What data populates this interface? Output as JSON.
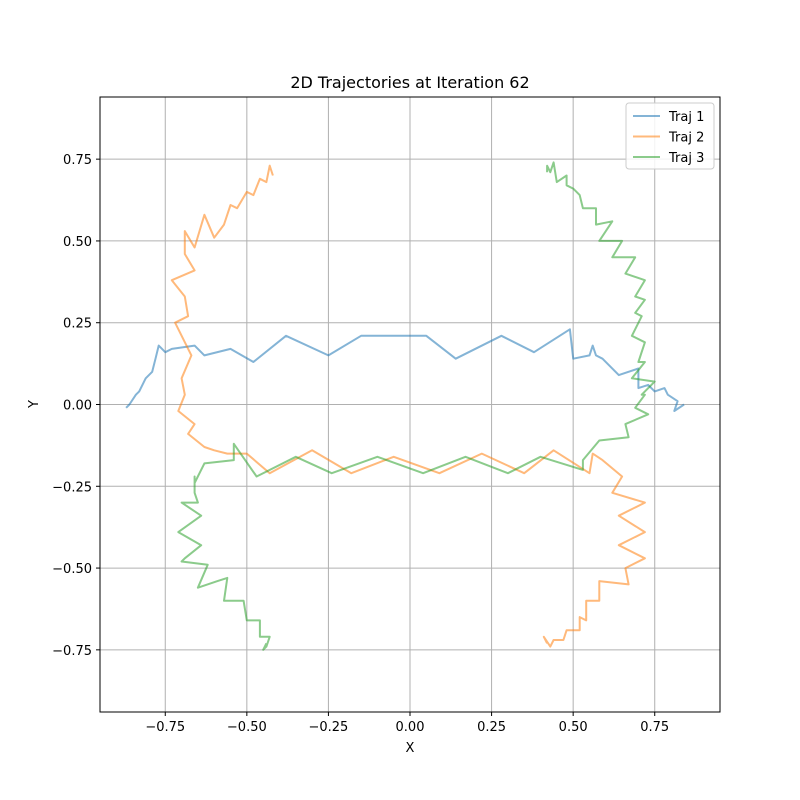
{
  "chart_data": {
    "type": "line",
    "title": "2D Trajectories at Iteration 62",
    "xlabel": "X",
    "ylabel": "Y",
    "xlim": [
      -0.95,
      0.95
    ],
    "ylim": [
      -0.94,
      0.94
    ],
    "xticks": [
      -0.75,
      -0.5,
      -0.25,
      0.0,
      0.25,
      0.5,
      0.75
    ],
    "xtick_labels": [
      "−0.75",
      "−0.50",
      "−0.25",
      "0.00",
      "0.25",
      "0.50",
      "0.75"
    ],
    "yticks": [
      -0.75,
      -0.5,
      -0.25,
      0.0,
      0.25,
      0.5,
      0.75
    ],
    "ytick_labels": [
      "−0.75",
      "−0.50",
      "−0.25",
      "0.00",
      "0.25",
      "0.50",
      "0.75"
    ],
    "grid": true,
    "legend_position": "top-right",
    "series": [
      {
        "name": "Traj 1",
        "color": "#1f77b4",
        "points": [
          [
            0.84,
            0.0
          ],
          [
            0.81,
            -0.02
          ],
          [
            0.82,
            0.01
          ],
          [
            0.79,
            0.03
          ],
          [
            0.78,
            0.05
          ],
          [
            0.75,
            0.04
          ],
          [
            0.73,
            0.06
          ],
          [
            0.7,
            0.05
          ],
          [
            0.7,
            0.11
          ],
          [
            0.64,
            0.09
          ],
          [
            0.59,
            0.14
          ],
          [
            0.57,
            0.15
          ],
          [
            0.56,
            0.18
          ],
          [
            0.55,
            0.15
          ],
          [
            0.5,
            0.14
          ],
          [
            0.49,
            0.23
          ],
          [
            0.38,
            0.16
          ],
          [
            0.28,
            0.21
          ],
          [
            0.14,
            0.14
          ],
          [
            0.05,
            0.21
          ],
          [
            -0.15,
            0.21
          ],
          [
            -0.25,
            0.15
          ],
          [
            -0.38,
            0.21
          ],
          [
            -0.48,
            0.13
          ],
          [
            -0.55,
            0.17
          ],
          [
            -0.63,
            0.15
          ],
          [
            -0.66,
            0.18
          ],
          [
            -0.73,
            0.17
          ],
          [
            -0.75,
            0.16
          ],
          [
            -0.77,
            0.18
          ],
          [
            -0.78,
            0.14
          ],
          [
            -0.79,
            0.1
          ],
          [
            -0.81,
            0.08
          ],
          [
            -0.83,
            0.04
          ],
          [
            -0.84,
            0.03
          ],
          [
            -0.86,
            0.0
          ],
          [
            -0.87,
            -0.01
          ]
        ]
      },
      {
        "name": "Traj 2",
        "color": "#ff7f0e",
        "points": [
          [
            -0.42,
            0.7
          ],
          [
            -0.43,
            0.73
          ],
          [
            -0.44,
            0.68
          ],
          [
            -0.46,
            0.69
          ],
          [
            -0.48,
            0.64
          ],
          [
            -0.5,
            0.65
          ],
          [
            -0.53,
            0.6
          ],
          [
            -0.55,
            0.61
          ],
          [
            -0.57,
            0.55
          ],
          [
            -0.6,
            0.51
          ],
          [
            -0.63,
            0.58
          ],
          [
            -0.66,
            0.48
          ],
          [
            -0.69,
            0.53
          ],
          [
            -0.69,
            0.46
          ],
          [
            -0.66,
            0.41
          ],
          [
            -0.73,
            0.38
          ],
          [
            -0.69,
            0.33
          ],
          [
            -0.68,
            0.27
          ],
          [
            -0.72,
            0.25
          ],
          [
            -0.67,
            0.15
          ],
          [
            -0.7,
            0.08
          ],
          [
            -0.69,
            0.03
          ],
          [
            -0.71,
            -0.02
          ],
          [
            -0.66,
            -0.06
          ],
          [
            -0.68,
            -0.09
          ],
          [
            -0.63,
            -0.13
          ],
          [
            -0.6,
            -0.14
          ],
          [
            -0.56,
            -0.15
          ],
          [
            -0.5,
            -0.15
          ],
          [
            -0.43,
            -0.21
          ],
          [
            -0.3,
            -0.14
          ],
          [
            -0.18,
            -0.21
          ],
          [
            -0.05,
            -0.16
          ],
          [
            0.09,
            -0.21
          ],
          [
            0.22,
            -0.15
          ],
          [
            0.35,
            -0.21
          ],
          [
            0.44,
            -0.14
          ],
          [
            0.55,
            -0.21
          ],
          [
            0.56,
            -0.15
          ],
          [
            0.59,
            -0.17
          ],
          [
            0.65,
            -0.22
          ],
          [
            0.62,
            -0.27
          ],
          [
            0.72,
            -0.3
          ],
          [
            0.64,
            -0.34
          ],
          [
            0.72,
            -0.39
          ],
          [
            0.64,
            -0.43
          ],
          [
            0.72,
            -0.47
          ],
          [
            0.66,
            -0.5
          ],
          [
            0.67,
            -0.55
          ],
          [
            0.58,
            -0.54
          ],
          [
            0.58,
            -0.6
          ],
          [
            0.54,
            -0.6
          ],
          [
            0.54,
            -0.66
          ],
          [
            0.52,
            -0.65
          ],
          [
            0.52,
            -0.69
          ],
          [
            0.48,
            -0.69
          ],
          [
            0.47,
            -0.72
          ],
          [
            0.44,
            -0.72
          ],
          [
            0.43,
            -0.74
          ],
          [
            0.41,
            -0.71
          ],
          [
            0.42,
            -0.73
          ]
        ]
      },
      {
        "name": "Traj 3",
        "color": "#2ca02c",
        "points": [
          [
            0.42,
            0.71
          ],
          [
            0.42,
            0.73
          ],
          [
            0.43,
            0.71
          ],
          [
            0.44,
            0.74
          ],
          [
            0.45,
            0.68
          ],
          [
            0.48,
            0.7
          ],
          [
            0.48,
            0.67
          ],
          [
            0.5,
            0.66
          ],
          [
            0.52,
            0.64
          ],
          [
            0.53,
            0.6
          ],
          [
            0.57,
            0.6
          ],
          [
            0.57,
            0.55
          ],
          [
            0.62,
            0.56
          ],
          [
            0.58,
            0.5
          ],
          [
            0.65,
            0.5
          ],
          [
            0.62,
            0.45
          ],
          [
            0.69,
            0.45
          ],
          [
            0.66,
            0.4
          ],
          [
            0.72,
            0.38
          ],
          [
            0.69,
            0.33
          ],
          [
            0.72,
            0.32
          ],
          [
            0.69,
            0.28
          ],
          [
            0.71,
            0.27
          ],
          [
            0.68,
            0.21
          ],
          [
            0.72,
            0.19
          ],
          [
            0.7,
            0.13
          ],
          [
            0.72,
            0.13
          ],
          [
            0.68,
            0.08
          ],
          [
            0.75,
            0.07
          ],
          [
            0.71,
            0.03
          ],
          [
            0.72,
            0.03
          ],
          [
            0.69,
            -0.01
          ],
          [
            0.73,
            -0.03
          ],
          [
            0.66,
            -0.06
          ],
          [
            0.67,
            -0.1
          ],
          [
            0.58,
            -0.11
          ],
          [
            0.53,
            -0.17
          ],
          [
            0.53,
            -0.2
          ],
          [
            0.4,
            -0.16
          ],
          [
            0.3,
            -0.21
          ],
          [
            0.17,
            -0.16
          ],
          [
            0.04,
            -0.21
          ],
          [
            -0.1,
            -0.16
          ],
          [
            -0.24,
            -0.21
          ],
          [
            -0.35,
            -0.16
          ],
          [
            -0.47,
            -0.22
          ],
          [
            -0.54,
            -0.12
          ],
          [
            -0.54,
            -0.17
          ],
          [
            -0.63,
            -0.18
          ],
          [
            -0.66,
            -0.24
          ],
          [
            -0.66,
            -0.22
          ],
          [
            -0.66,
            -0.27
          ],
          [
            -0.65,
            -0.3
          ],
          [
            -0.7,
            -0.3
          ],
          [
            -0.64,
            -0.34
          ],
          [
            -0.71,
            -0.39
          ],
          [
            -0.64,
            -0.43
          ],
          [
            -0.69,
            -0.47
          ],
          [
            -0.7,
            -0.48
          ],
          [
            -0.62,
            -0.49
          ],
          [
            -0.65,
            -0.56
          ],
          [
            -0.59,
            -0.54
          ],
          [
            -0.56,
            -0.53
          ],
          [
            -0.57,
            -0.6
          ],
          [
            -0.51,
            -0.6
          ],
          [
            -0.5,
            -0.66
          ],
          [
            -0.46,
            -0.66
          ],
          [
            -0.46,
            -0.71
          ],
          [
            -0.43,
            -0.71
          ],
          [
            -0.44,
            -0.74
          ],
          [
            -0.45,
            -0.75
          ],
          [
            -0.44,
            -0.73
          ]
        ]
      }
    ]
  }
}
